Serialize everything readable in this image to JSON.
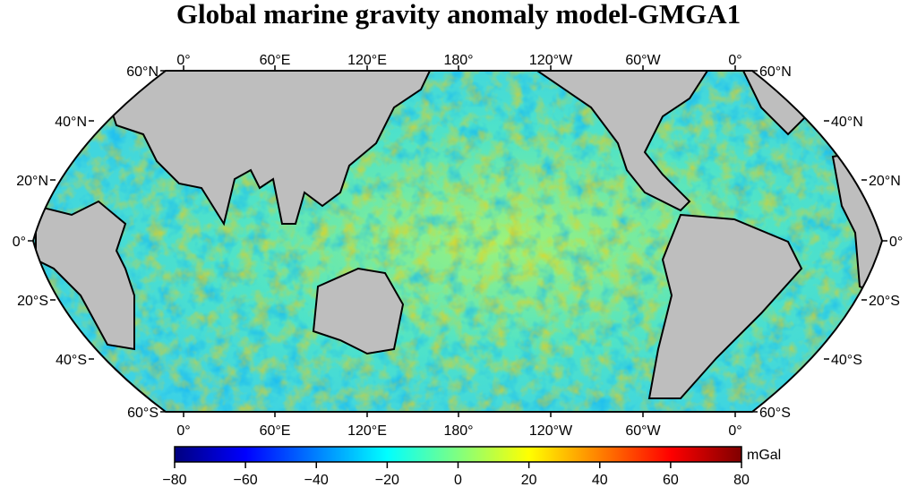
{
  "title": "Global marine gravity anomaly model-GMGA1",
  "map": {
    "projection": "winkel-tripel",
    "center_longitude": "180°",
    "top_longitude_labels": [
      "0°",
      "60°E",
      "120°E",
      "180°",
      "120°W",
      "60°W",
      "0°"
    ],
    "bottom_longitude_labels": [
      "0°",
      "60°E",
      "120°E",
      "180°",
      "120°W",
      "60°W",
      "0°"
    ],
    "left_latitude_labels": [
      "60°N",
      "40°N",
      "20°N",
      "0°",
      "20°S",
      "40°S",
      "60°S"
    ],
    "right_latitude_labels": [
      "60°N",
      "40°N",
      "20°N",
      "0°",
      "20°S",
      "40°S",
      "60°S"
    ],
    "land_color": "#bebebe",
    "coastline_color": "#000000"
  },
  "colorbar": {
    "unit": "mGal",
    "ticks": [
      "−80",
      "−60",
      "−40",
      "−20",
      "0",
      "20",
      "40",
      "60",
      "80"
    ],
    "range": [
      -80,
      80
    ],
    "colors": [
      "#00007f",
      "#0000ff",
      "#0080ff",
      "#00ffff",
      "#80ff80",
      "#ffff00",
      "#ff8000",
      "#ff0000",
      "#7f0000"
    ]
  }
}
